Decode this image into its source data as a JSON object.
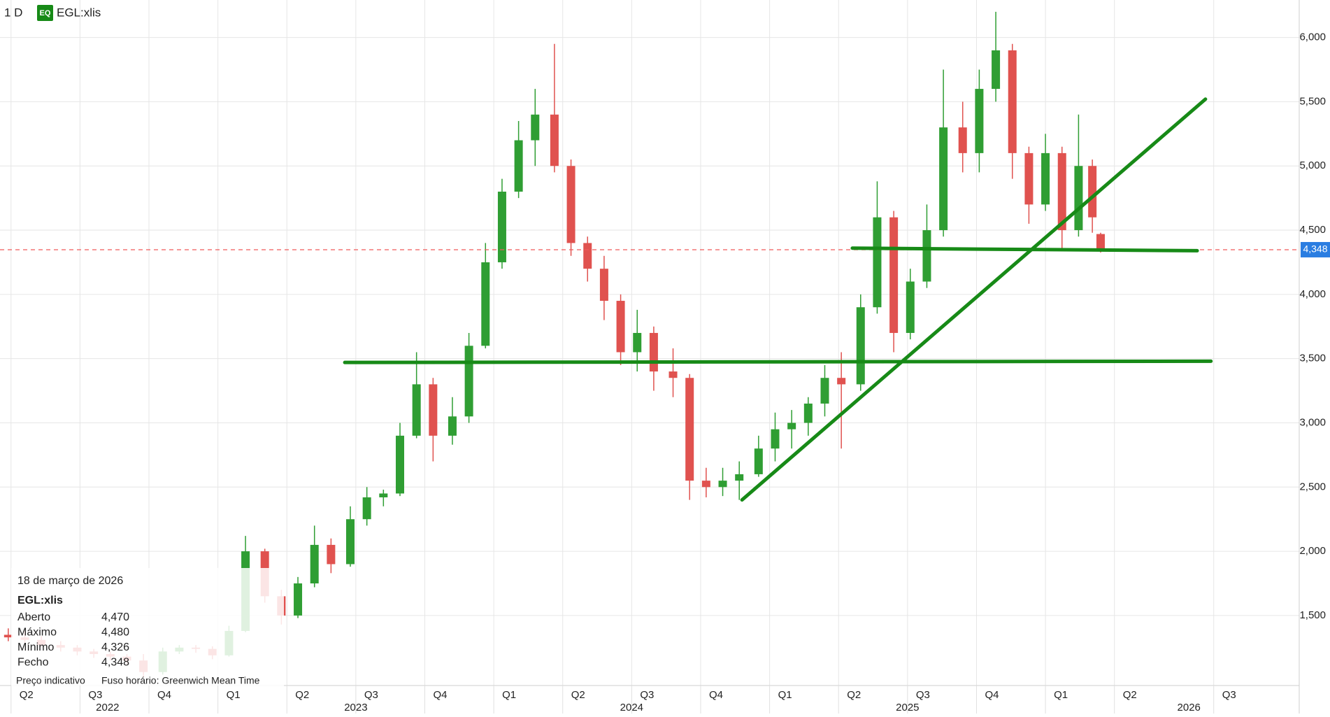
{
  "chart_data": {
    "type": "candlestick",
    "interval": "1 D",
    "badge": "EQ",
    "symbol": "EGL:xlis",
    "up_color": "#2f9e33",
    "down_color": "#e0524f",
    "grid": true,
    "xlim": [
      2022.21,
      2026.92
    ],
    "ylim": [
      955,
      6292
    ],
    "xticks": [
      {
        "value": 2022.25,
        "label": "Q2"
      },
      {
        "value": 2022.5,
        "label": "Q3"
      },
      {
        "value": 2022.75,
        "label": "Q4"
      },
      {
        "value": 2023.0,
        "label": "Q1"
      },
      {
        "value": 2023.25,
        "label": "Q2"
      },
      {
        "value": 2023.5,
        "label": "Q3"
      },
      {
        "value": 2023.75,
        "label": "Q4"
      },
      {
        "value": 2024.0,
        "label": "Q1"
      },
      {
        "value": 2024.25,
        "label": "Q2"
      },
      {
        "value": 2024.5,
        "label": "Q3"
      },
      {
        "value": 2024.75,
        "label": "Q4"
      },
      {
        "value": 2025.0,
        "label": "Q1"
      },
      {
        "value": 2025.25,
        "label": "Q2"
      },
      {
        "value": 2025.5,
        "label": "Q3"
      },
      {
        "value": 2025.75,
        "label": "Q4"
      },
      {
        "value": 2026.0,
        "label": "Q1"
      },
      {
        "value": 2026.25,
        "label": "Q2"
      },
      {
        "value": 2026.61,
        "label": "Q3"
      }
    ],
    "year_ticks": [
      {
        "value": 2022.6,
        "label": "2022"
      },
      {
        "value": 2023.5,
        "label": "2023"
      },
      {
        "value": 2024.5,
        "label": "2024"
      },
      {
        "value": 2025.5,
        "label": "2025"
      },
      {
        "value": 2026.52,
        "label": "2026"
      }
    ],
    "yticks": [
      {
        "value": 1500,
        "label": "1,500"
      },
      {
        "value": 2000,
        "label": "2,000"
      },
      {
        "value": 2500,
        "label": "2,500"
      },
      {
        "value": 3000,
        "label": "3,000"
      },
      {
        "value": 3500,
        "label": "3,500"
      },
      {
        "value": 4000,
        "label": "4,000"
      },
      {
        "value": 4500,
        "label": "4,500"
      },
      {
        "value": 5000,
        "label": "5,000"
      },
      {
        "value": 5500,
        "label": "5,500"
      },
      {
        "value": 6000,
        "label": "6,000"
      }
    ],
    "x": [
      2022.24,
      2022.3,
      2022.36,
      2022.43,
      2022.49,
      2022.55,
      2022.61,
      2022.67,
      2022.73,
      2022.8,
      2022.86,
      2022.92,
      2022.98,
      2023.04,
      2023.1,
      2023.17,
      2023.23,
      2023.29,
      2023.35,
      2023.41,
      2023.48,
      2023.54,
      2023.6,
      2023.66,
      2023.72,
      2023.78,
      2023.85,
      2023.91,
      2023.97,
      2024.03,
      2024.09,
      2024.15,
      2024.22,
      2024.28,
      2024.34,
      2024.4,
      2024.46,
      2024.52,
      2024.58,
      2024.65,
      2024.71,
      2024.77,
      2024.83,
      2024.89,
      2024.96,
      2025.02,
      2025.08,
      2025.14,
      2025.2,
      2025.26,
      2025.33,
      2025.39,
      2025.45,
      2025.51,
      2025.57,
      2025.63,
      2025.7,
      2025.76,
      2025.82,
      2025.88,
      2025.94,
      2026.0,
      2026.06,
      2026.12,
      2026.17,
      2026.2
    ],
    "open": [
      1350,
      1330,
      1310,
      1270,
      1250,
      1220,
      1200,
      1180,
      1150,
      1060,
      1220,
      1250,
      1240,
      1190,
      1380,
      2000,
      1650,
      1500,
      1750,
      2050,
      1900,
      2250,
      2420,
      2450,
      2900,
      3300,
      2900,
      3050,
      3600,
      4250,
      4800,
      5200,
      5400,
      5000,
      4400,
      4200,
      3950,
      3550,
      3700,
      3400,
      3350,
      2550,
      2500,
      2550,
      2600,
      2800,
      2950,
      3000,
      3150,
      3350,
      3300,
      3900,
      4600,
      3700,
      4100,
      4500,
      5300,
      5100,
      5600,
      5900,
      5100,
      4700,
      5100,
      4500,
      5000,
      4470
    ],
    "high": [
      1400,
      1380,
      1340,
      1300,
      1270,
      1240,
      1220,
      1200,
      1200,
      1250,
      1270,
      1270,
      1260,
      1420,
      2120,
      2020,
      1700,
      1800,
      2200,
      2100,
      2350,
      2500,
      2480,
      3000,
      3550,
      3350,
      3200,
      3700,
      4400,
      4900,
      5350,
      5600,
      5950,
      5050,
      4450,
      4300,
      4000,
      3880,
      3750,
      3580,
      3380,
      2650,
      2650,
      2700,
      2900,
      3080,
      3100,
      3200,
      3450,
      3550,
      4000,
      4880,
      4650,
      4200,
      4700,
      5750,
      5500,
      5750,
      6200,
      5950,
      5150,
      5250,
      5150,
      5400,
      5050,
      4480
    ],
    "low": [
      1300,
      1290,
      1250,
      1220,
      1190,
      1170,
      1150,
      1120,
      1020,
      1040,
      1200,
      1210,
      1160,
      1180,
      1370,
      1600,
      1430,
      1480,
      1720,
      1830,
      1880,
      2200,
      2350,
      2430,
      2880,
      2700,
      2830,
      3000,
      3580,
      4200,
      4750,
      5000,
      4950,
      4300,
      4100,
      3800,
      3450,
      3400,
      3250,
      3200,
      2400,
      2420,
      2430,
      2400,
      2580,
      2700,
      2800,
      2900,
      3050,
      2800,
      3250,
      3850,
      3550,
      3650,
      4050,
      4450,
      4950,
      4950,
      5500,
      4900,
      4550,
      4650,
      4350,
      4450,
      4480,
      4326
    ],
    "close": [
      1330,
      1310,
      1270,
      1250,
      1220,
      1200,
      1180,
      1150,
      1060,
      1220,
      1250,
      1240,
      1190,
      1380,
      2000,
      1650,
      1500,
      1750,
      2050,
      1900,
      2250,
      2420,
      2450,
      2900,
      3300,
      2900,
      3050,
      3600,
      4250,
      4800,
      5200,
      5400,
      5000,
      4400,
      4200,
      3950,
      3550,
      3700,
      3400,
      3350,
      2550,
      2500,
      2550,
      2600,
      2800,
      2950,
      3000,
      3150,
      3350,
      3300,
      3900,
      4600,
      3700,
      4100,
      4500,
      5300,
      5100,
      5600,
      5900,
      5100,
      4700,
      5100,
      4500,
      5000,
      4600,
      4348
    ],
    "last_price": {
      "value": 4348,
      "label": "4,348"
    },
    "trend_color": "#178a17",
    "trend_lines": [
      {
        "x": [
          2023.46,
          2026.6
        ],
        "y": [
          3470,
          3480
        ]
      },
      {
        "x": [
          2024.9,
          2026.58
        ],
        "y": [
          2400,
          5520
        ]
      },
      {
        "x": [
          2025.3,
          2026.55
        ],
        "y": [
          4360,
          4340
        ]
      }
    ],
    "tooltip": {
      "date": "18 de março de 2026",
      "symbol": "EGL:xlis",
      "rows": [
        [
          "Aberto",
          "4,470"
        ],
        [
          "Máximo",
          "4,480"
        ],
        [
          "Mínimo",
          "4,326"
        ],
        [
          "Fecho",
          "4,348"
        ]
      ],
      "footer": [
        "Preço indicativo",
        "Fuso horário: Greenwich Mean Time"
      ]
    }
  }
}
